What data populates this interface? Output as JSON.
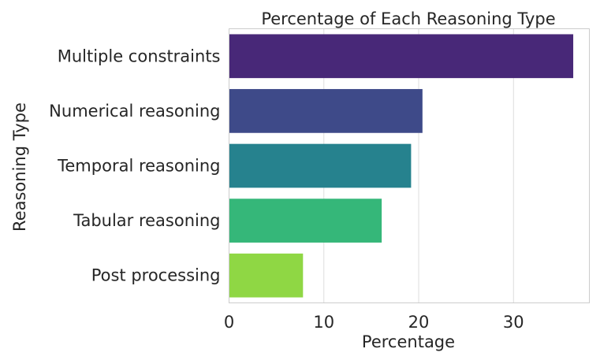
{
  "chart_data": {
    "type": "bar",
    "orientation": "horizontal",
    "title": "Percentage of Each Reasoning Type",
    "xlabel": "Percentage",
    "ylabel": "Reasoning Type",
    "categories": [
      "Multiple constraints",
      "Numerical reasoning",
      "Temporal reasoning",
      "Tabular reasoning",
      "Post processing"
    ],
    "values": [
      36.3,
      20.4,
      19.2,
      16.1,
      7.8
    ],
    "colors": [
      "#482878",
      "#3e4a89",
      "#26828e",
      "#35b779",
      "#8fd744"
    ],
    "xlim": [
      0,
      36.3
    ],
    "xticks": [
      0,
      10,
      20,
      30
    ],
    "grid": "x"
  }
}
